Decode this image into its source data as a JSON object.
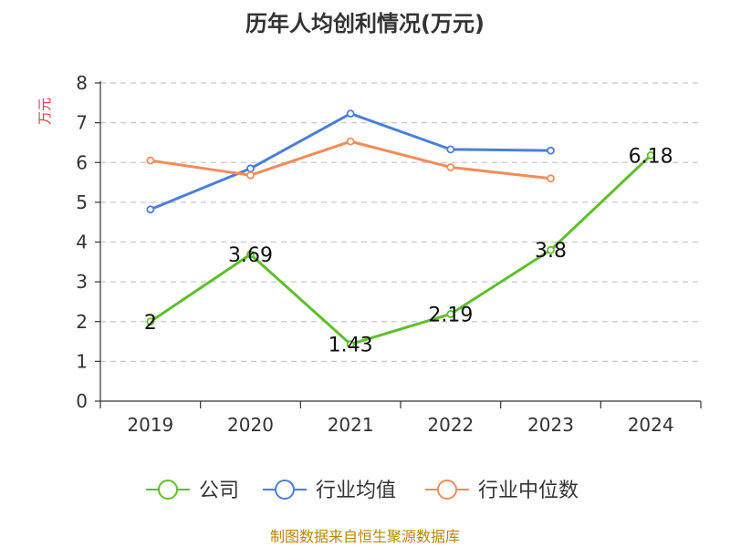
{
  "chart_data": {
    "type": "line",
    "title": "历年人均创利情况(万元)",
    "ylabel": "万元",
    "xlabel": "",
    "categories": [
      "2019",
      "2020",
      "2021",
      "2022",
      "2023",
      "2024"
    ],
    "ylim": [
      0,
      8
    ],
    "yticks": [
      0,
      1,
      2,
      3,
      4,
      5,
      6,
      7,
      8
    ],
    "grid": true,
    "legend_position": "bottom",
    "series": [
      {
        "name": "公司",
        "color": "#5cc02a",
        "values": [
          2,
          3.69,
          1.43,
          2.19,
          3.8,
          6.18
        ],
        "labels": [
          "2",
          "3.69",
          "1.43",
          "2.19",
          "3.8",
          "6.18"
        ]
      },
      {
        "name": "行业均值",
        "color": "#4a7fd8",
        "values": [
          4.82,
          5.85,
          7.23,
          6.33,
          6.3,
          null
        ]
      },
      {
        "name": "行业中位数",
        "color": "#f28c5a",
        "values": [
          6.05,
          5.68,
          6.53,
          5.88,
          5.6,
          null
        ]
      }
    ],
    "source": "制图数据来自恒生聚源数据库"
  }
}
